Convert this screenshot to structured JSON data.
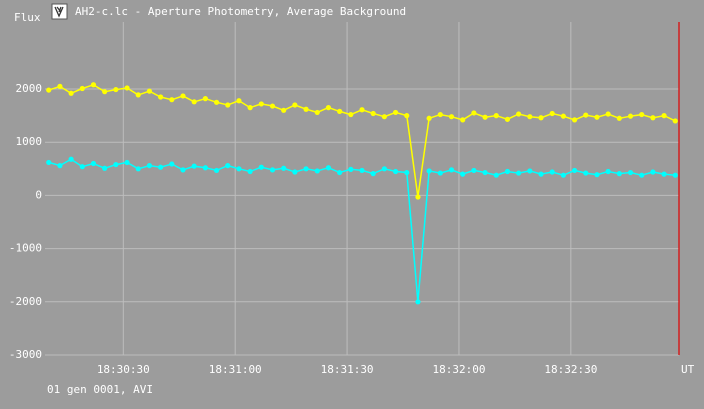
{
  "chart_data": {
    "type": "line",
    "title": "AH2-c.lc - Aperture Photometry, Average Background",
    "y_label": "Flux",
    "x_label": "UT",
    "footer": "01 gen 0001, AVI",
    "grid": true,
    "xlim": [
      "18:30:09",
      "18:32:59"
    ],
    "xticks": [
      "18:30:30",
      "18:31:00",
      "18:31:30",
      "18:32:00",
      "18:32:30"
    ],
    "ylim": [
      -3000,
      3260
    ],
    "yticks": [
      -3000,
      -2000,
      -1000,
      0,
      1000,
      2000
    ],
    "x": [
      "18:30:10",
      "18:30:13",
      "18:30:16",
      "18:30:19",
      "18:30:22",
      "18:30:25",
      "18:30:28",
      "18:30:31",
      "18:30:34",
      "18:30:37",
      "18:30:40",
      "18:30:43",
      "18:30:46",
      "18:30:49",
      "18:30:52",
      "18:30:55",
      "18:30:58",
      "18:31:01",
      "18:31:04",
      "18:31:07",
      "18:31:10",
      "18:31:13",
      "18:31:16",
      "18:31:19",
      "18:31:22",
      "18:31:25",
      "18:31:28",
      "18:31:31",
      "18:31:34",
      "18:31:37",
      "18:31:40",
      "18:31:43",
      "18:31:46",
      "18:31:49",
      "18:31:52",
      "18:31:55",
      "18:31:58",
      "18:32:01",
      "18:32:04",
      "18:32:07",
      "18:32:10",
      "18:32:13",
      "18:32:16",
      "18:32:19",
      "18:32:22",
      "18:32:25",
      "18:32:28",
      "18:32:31",
      "18:32:34",
      "18:32:37",
      "18:32:40",
      "18:32:43",
      "18:32:46",
      "18:32:49",
      "18:32:52",
      "18:32:55",
      "18:32:58"
    ],
    "series": [
      {
        "color": "#ffff00",
        "values": [
          1980,
          2050,
          1920,
          2010,
          2080,
          1950,
          1990,
          2020,
          1890,
          1960,
          1850,
          1800,
          1870,
          1760,
          1820,
          1750,
          1700,
          1780,
          1650,
          1720,
          1680,
          1600,
          1700,
          1620,
          1560,
          1650,
          1580,
          1520,
          1610,
          1540,
          1480,
          1560,
          1500,
          -30,
          1450,
          1520,
          1480,
          1420,
          1550,
          1470,
          1500,
          1430,
          1530,
          1480,
          1460,
          1540,
          1490,
          1420,
          1510,
          1470,
          1530,
          1450,
          1490,
          1520,
          1460,
          1500,
          1400
        ]
      },
      {
        "color": "#00ffff",
        "values": [
          620,
          560,
          680,
          540,
          600,
          510,
          580,
          620,
          500,
          560,
          530,
          590,
          480,
          550,
          520,
          470,
          560,
          500,
          450,
          530,
          480,
          510,
          440,
          500,
          460,
          520,
          430,
          490,
          470,
          410,
          500,
          450,
          430,
          -2000,
          460,
          420,
          480,
          400,
          470,
          430,
          380,
          450,
          420,
          460,
          400,
          440,
          380,
          470,
          420,
          390,
          450,
          410,
          430,
          380,
          440,
          400,
          380
        ]
      }
    ]
  }
}
